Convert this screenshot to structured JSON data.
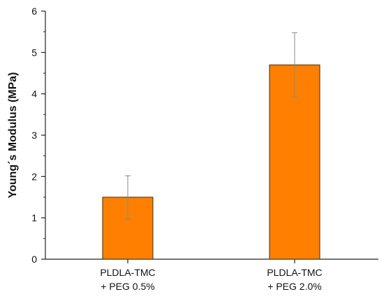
{
  "chart_data": {
    "type": "bar",
    "title": "",
    "xlabel": "",
    "ylabel": "Young´s Modulus (MPa)",
    "ylim": [
      0,
      6
    ],
    "yticks": [
      0,
      1,
      2,
      3,
      4,
      5,
      6
    ],
    "grid": false,
    "categories": [
      {
        "line1": "PLDLA-TMC",
        "line2": "+ PEG 0.5%"
      },
      {
        "line1": "PLDLA-TMC",
        "line2": "+ PEG 2.0%"
      }
    ],
    "values": [
      1.5,
      4.7
    ],
    "error_bars": [
      {
        "low": 0.97,
        "high": 2.02
      },
      {
        "low": 3.92,
        "high": 5.48
      }
    ],
    "colors": {
      "bar_fill": "#ff8000",
      "bar_stroke": "#3a2a1a",
      "axis": "#222222",
      "error": "#888888"
    }
  }
}
